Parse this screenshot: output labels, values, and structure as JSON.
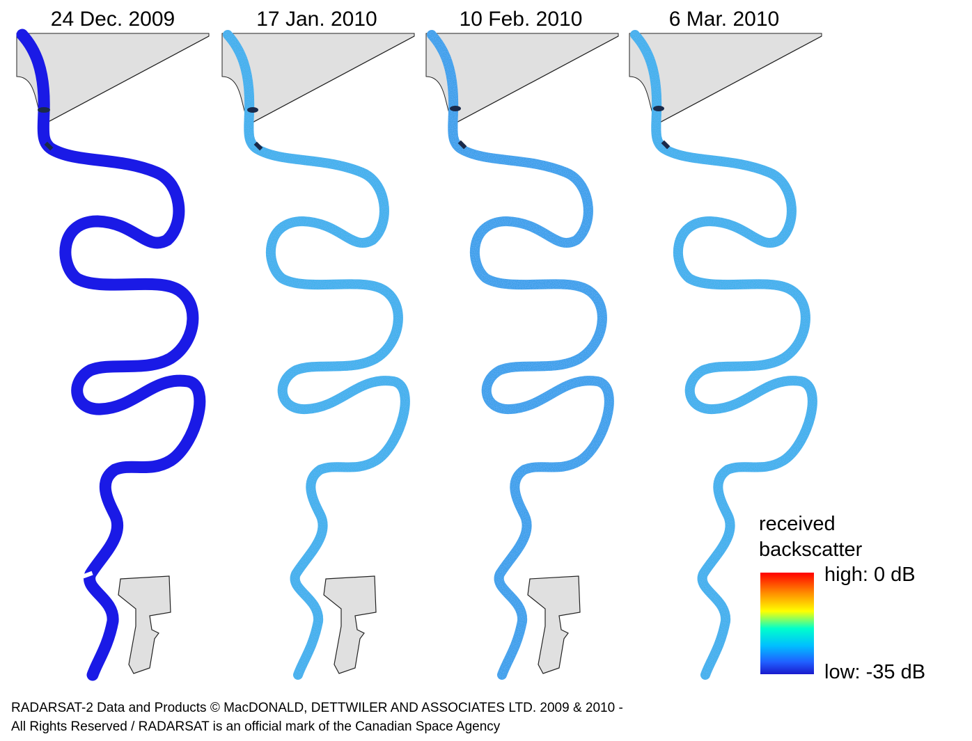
{
  "panels": [
    {
      "date": "24 Dec. 2009",
      "river_color": "#1a1ae6",
      "style": "solid"
    },
    {
      "date": "17 Jan. 2010",
      "river_color": "#3fb2e8",
      "style": "speckle"
    },
    {
      "date": "10 Feb. 2010",
      "river_color": "#3a9ee6",
      "style": "speckle"
    },
    {
      "date": "6 Mar. 2010",
      "river_color": "#3fb2e8",
      "style": "speckle"
    }
  ],
  "legend": {
    "title_line1": "received",
    "title_line2": "backscatter",
    "high_label": "high: 0 dB",
    "low_label": "low: -35 dB",
    "colors": [
      "#ff0000",
      "#ff8c00",
      "#ffff00",
      "#00ffcc",
      "#00bfff",
      "#2060ff",
      "#1a1acc"
    ]
  },
  "credit": {
    "line1": "RADARSAT-2 Data and Products © MacDONALD, DETTWILER AND ASSOCIATES LTD. 2009 & 2010 -",
    "line2": "All Rights Reserved / RADARSAT is an official mark of the Canadian Space Agency"
  },
  "colors": {
    "land_fill": "#e0e0e0",
    "land_stroke": "#222222",
    "ice_bridge": "#1a2a4a"
  }
}
